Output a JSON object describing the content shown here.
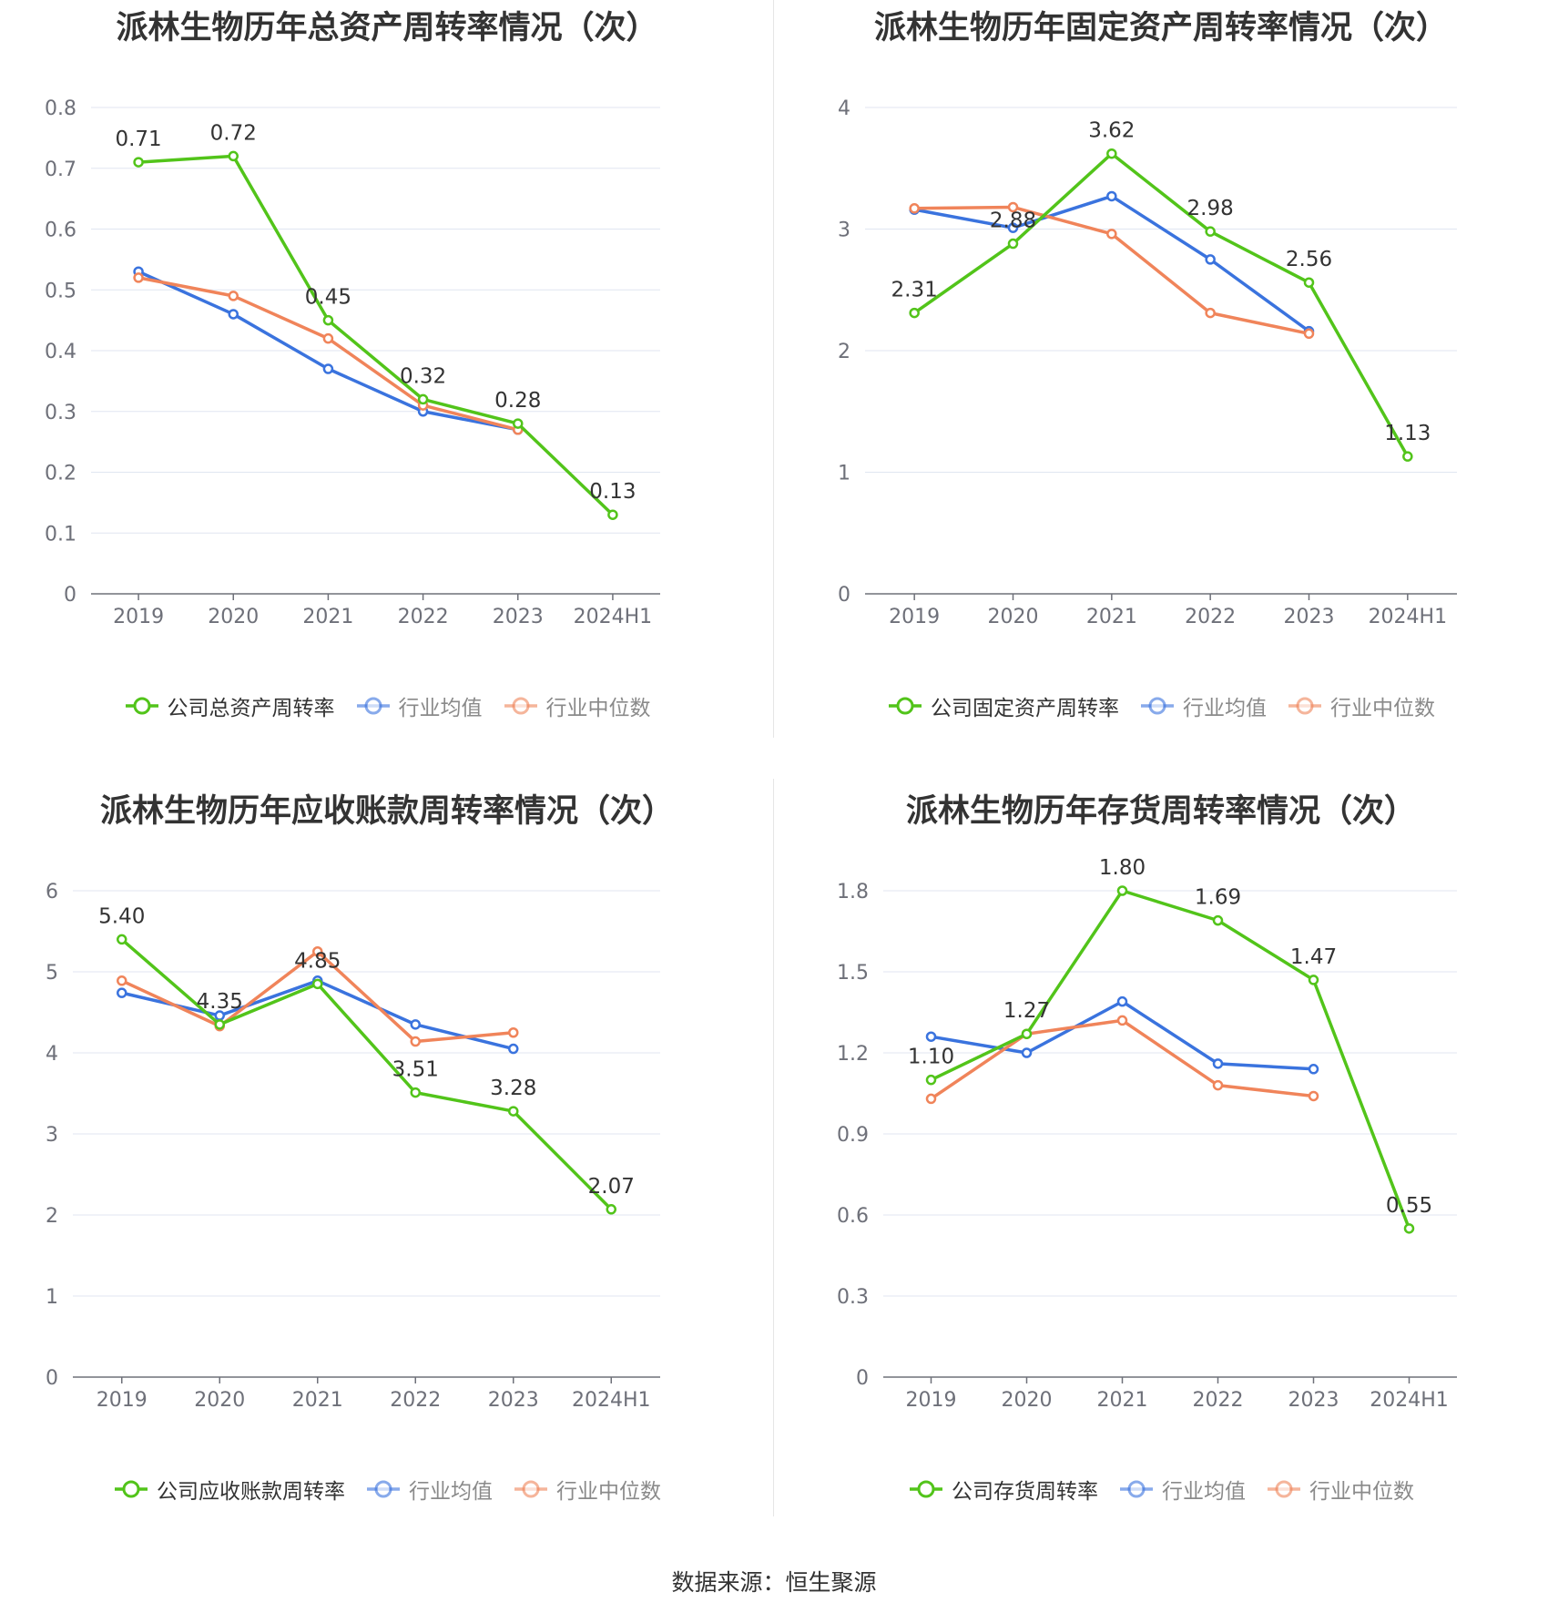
{
  "footer": "数据来源：恒生聚源",
  "colors": {
    "company": "#52c41a",
    "avg": "#3a73de",
    "median": "#f0845a"
  },
  "chart_data": [
    {
      "type": "line",
      "title": "派林生物历年总资产周转率情况（次）",
      "categories": [
        "2019",
        "2020",
        "2021",
        "2022",
        "2023",
        "2024H1"
      ],
      "ylim": [
        0,
        0.8
      ],
      "yticks": [
        0,
        0.1,
        0.2,
        0.3,
        0.4,
        0.5,
        0.6,
        0.7,
        0.8
      ],
      "ytick_labels": [
        "0",
        "0.1",
        "0.2",
        "0.3",
        "0.4",
        "0.5",
        "0.6",
        "0.7",
        "0.8"
      ],
      "series": [
        {
          "name": "公司总资产周转率",
          "role": "company",
          "values": [
            0.71,
            0.72,
            0.45,
            0.32,
            0.28,
            0.13
          ],
          "labels": [
            "0.71",
            "0.72",
            "0.45",
            "0.32",
            "0.28",
            "0.13"
          ]
        },
        {
          "name": "行业均值",
          "role": "avg",
          "values": [
            0.53,
            0.46,
            0.37,
            0.3,
            0.27,
            null
          ]
        },
        {
          "name": "行业中位数",
          "role": "median",
          "values": [
            0.52,
            0.49,
            0.42,
            0.31,
            0.27,
            null
          ]
        }
      ]
    },
    {
      "type": "line",
      "title": "派林生物历年固定资产周转率情况（次）",
      "categories": [
        "2019",
        "2020",
        "2021",
        "2022",
        "2023",
        "2024H1"
      ],
      "ylim": [
        0,
        4
      ],
      "yticks": [
        0,
        1,
        2,
        3,
        4
      ],
      "ytick_labels": [
        "0",
        "1",
        "2",
        "3",
        "4"
      ],
      "series": [
        {
          "name": "公司固定资产周转率",
          "role": "company",
          "values": [
            2.31,
            2.88,
            3.62,
            2.98,
            2.56,
            1.13
          ],
          "labels": [
            "2.31",
            "2.88",
            "3.62",
            "2.98",
            "2.56",
            "1.13"
          ]
        },
        {
          "name": "行业均值",
          "role": "avg",
          "values": [
            3.16,
            3.01,
            3.27,
            2.75,
            2.16,
            null
          ]
        },
        {
          "name": "行业中位数",
          "role": "median",
          "values": [
            3.17,
            3.18,
            2.96,
            2.31,
            2.14,
            null
          ]
        }
      ]
    },
    {
      "type": "line",
      "title": "派林生物历年应收账款周转率情况（次）",
      "categories": [
        "2019",
        "2020",
        "2021",
        "2022",
        "2023",
        "2024H1"
      ],
      "ylim": [
        0,
        6
      ],
      "yticks": [
        0,
        1,
        2,
        3,
        4,
        5,
        6
      ],
      "ytick_labels": [
        "0",
        "1",
        "2",
        "3",
        "4",
        "5",
        "6"
      ],
      "series": [
        {
          "name": "公司应收账款周转率",
          "role": "company",
          "values": [
            5.4,
            4.35,
            4.85,
            3.51,
            3.28,
            2.07
          ],
          "labels": [
            "5.40",
            "4.35",
            "4.85",
            "3.51",
            "3.28",
            "2.07"
          ]
        },
        {
          "name": "行业均值",
          "role": "avg",
          "values": [
            4.74,
            4.46,
            4.89,
            4.35,
            4.05,
            null
          ]
        },
        {
          "name": "行业中位数",
          "role": "median",
          "values": [
            4.89,
            4.33,
            5.25,
            4.14,
            4.25,
            null
          ]
        }
      ]
    },
    {
      "type": "line",
      "title": "派林生物历年存货周转率情况（次）",
      "categories": [
        "2019",
        "2020",
        "2021",
        "2022",
        "2023",
        "2024H1"
      ],
      "ylim": [
        0,
        1.8
      ],
      "yticks": [
        0,
        0.3,
        0.6,
        0.9,
        1.2,
        1.5,
        1.8
      ],
      "ytick_labels": [
        "0",
        "0.3",
        "0.6",
        "0.9",
        "1.2",
        "1.5",
        "1.8"
      ],
      "series": [
        {
          "name": "公司存货周转率",
          "role": "company",
          "values": [
            1.1,
            1.27,
            1.8,
            1.69,
            1.47,
            0.55
          ],
          "labels": [
            "1.10",
            "1.27",
            "1.80",
            "1.69",
            "1.47",
            "0.55"
          ]
        },
        {
          "name": "行业均值",
          "role": "avg",
          "values": [
            1.26,
            1.2,
            1.39,
            1.16,
            1.14,
            null
          ]
        },
        {
          "name": "行业中位数",
          "role": "median",
          "values": [
            1.03,
            1.27,
            1.32,
            1.08,
            1.04,
            null
          ]
        }
      ]
    }
  ]
}
